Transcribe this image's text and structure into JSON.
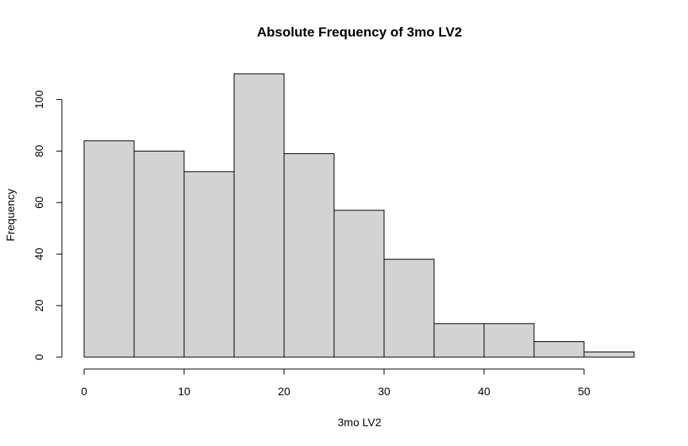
{
  "chart_data": {
    "type": "bar",
    "title": "Absolute Frequency of 3mo LV2",
    "xlabel": "3mo LV2",
    "ylabel": "Frequency",
    "bins": [
      {
        "x0": 0,
        "x1": 5,
        "count": 84
      },
      {
        "x0": 5,
        "x1": 10,
        "count": 80
      },
      {
        "x0": 10,
        "x1": 15,
        "count": 72
      },
      {
        "x0": 15,
        "x1": 20,
        "count": 110
      },
      {
        "x0": 20,
        "x1": 25,
        "count": 79
      },
      {
        "x0": 25,
        "x1": 30,
        "count": 57
      },
      {
        "x0": 30,
        "x1": 35,
        "count": 38
      },
      {
        "x0": 35,
        "x1": 40,
        "count": 13
      },
      {
        "x0": 40,
        "x1": 45,
        "count": 13
      },
      {
        "x0": 45,
        "x1": 50,
        "count": 6
      },
      {
        "x0": 50,
        "x1": 55,
        "count": 2
      }
    ],
    "xticks": [
      0,
      10,
      20,
      30,
      40,
      50
    ],
    "yticks": [
      0,
      20,
      40,
      60,
      80,
      100
    ],
    "xlim": [
      0,
      55
    ],
    "ylim": [
      0,
      110
    ],
    "grid": false,
    "bar_color": "#d3d3d3",
    "bar_edge_color": "#000000"
  }
}
